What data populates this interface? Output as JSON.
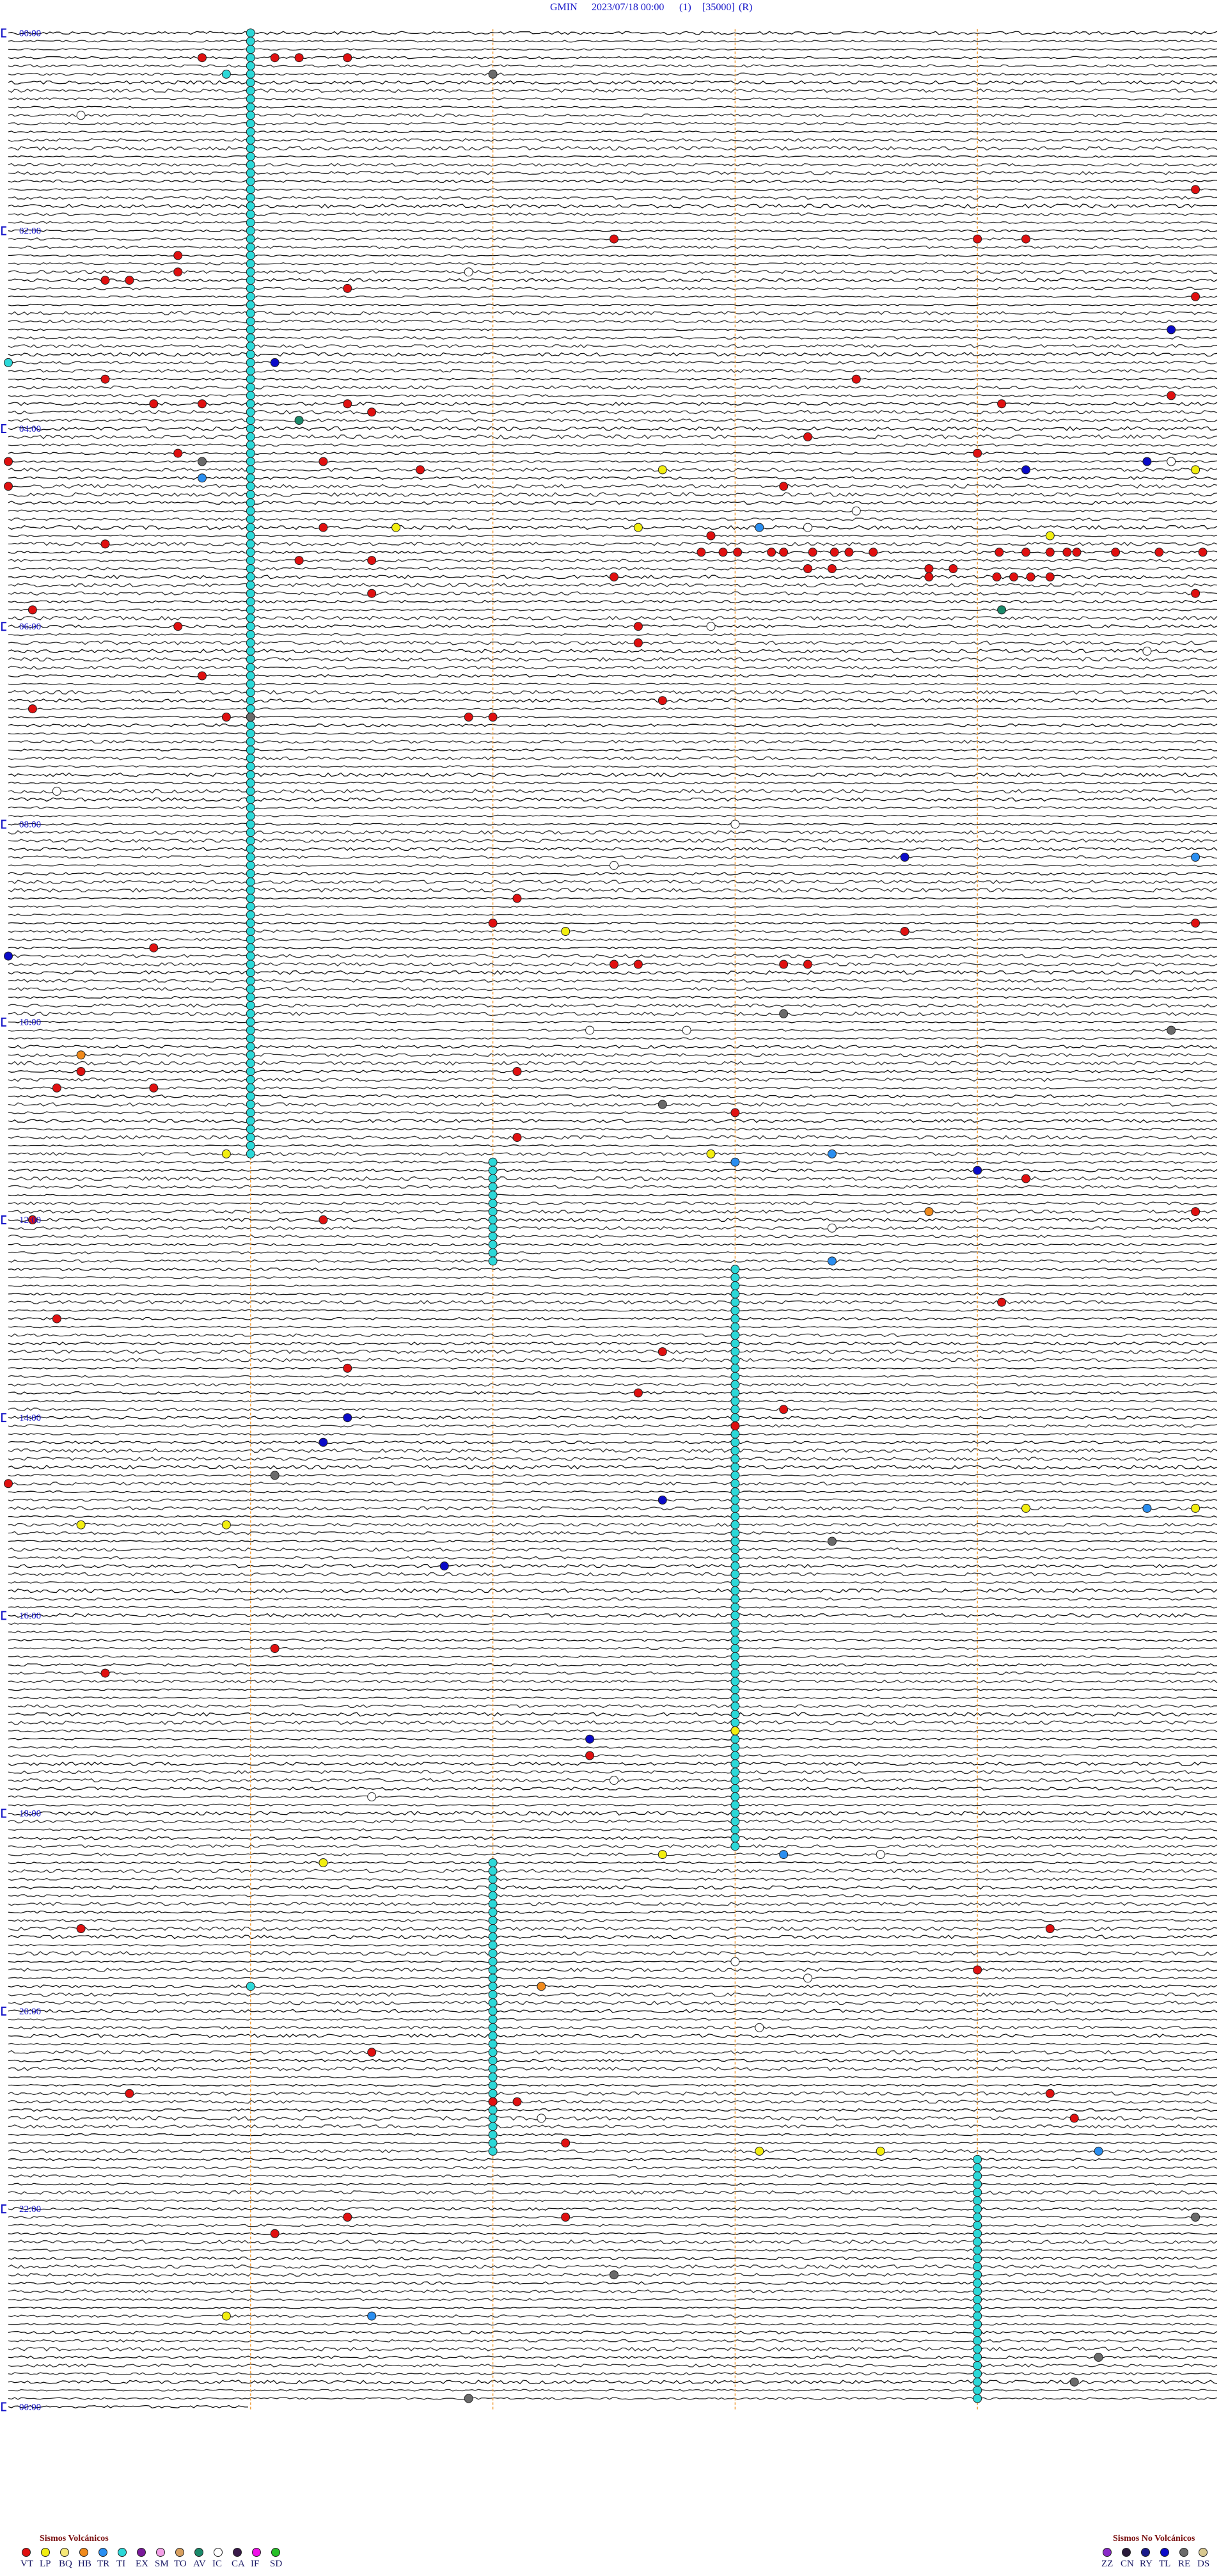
{
  "header": {
    "station": "GMIN",
    "datetime": "2023/07/18 00:00",
    "channel": "(1)",
    "scale": "[35000]",
    "mode": "(R)"
  },
  "hour_labels": [
    "00:00",
    "02:00",
    "04:00",
    "06:00",
    "08:00",
    "10:00",
    "12:00",
    "14:00",
    "16:00",
    "18:00",
    "20:00",
    "22:00",
    "00:00"
  ],
  "legend": {
    "volcanic": {
      "title": "Sismos Volcánicos",
      "codes": [
        {
          "code": "VT",
          "color": "#e01010"
        },
        {
          "code": "LP",
          "color": "#f2ee10"
        },
        {
          "code": "BQ",
          "color": "#f6e878"
        },
        {
          "code": "HB",
          "color": "#f08a1c"
        },
        {
          "code": "TR",
          "color": "#2a8ef0"
        },
        {
          "code": "TI",
          "color": "#2cd8d8"
        },
        {
          "code": "EX",
          "color": "#7a1a9a"
        },
        {
          "code": "SM",
          "color": "#f4a0e8"
        },
        {
          "code": "TO",
          "color": "#d8a060"
        },
        {
          "code": "AV",
          "color": "#1a8a6a"
        },
        {
          "code": "IC",
          "color": "#ffffff"
        },
        {
          "code": "CA",
          "color": "#3a1a4a"
        },
        {
          "code": "IF",
          "color": "#f010e8"
        },
        {
          "code": "SD",
          "color": "#28c028"
        }
      ]
    },
    "non_volcanic": {
      "title": "Sismos No Volcánicos",
      "codes": [
        {
          "code": "ZZ",
          "color": "#8a2ac8"
        },
        {
          "code": "CN",
          "color": "#2a1a3a"
        },
        {
          "code": "RY",
          "color": "#1a1a8a"
        },
        {
          "code": "TL",
          "color": "#0a0ac8"
        },
        {
          "code": "RE",
          "color": "#6a6a6a"
        },
        {
          "code": "DS",
          "color": "#d8c890"
        }
      ]
    }
  },
  "tremor_spans": [
    {
      "code": "TI",
      "start": 1,
      "end": 681
    },
    {
      "code": "TI",
      "start": 687,
      "end": 747
    },
    {
      "code": "TI",
      "start": 753,
      "end": 1103
    },
    {
      "code": "TI",
      "start": 1112,
      "end": 1287
    },
    {
      "code": "TI",
      "start": 1294,
      "end": 1439
    }
  ],
  "events": [
    {
      "code": "VT",
      "minute": 15.8
    },
    {
      "code": "VT",
      "minute": 16.1
    },
    {
      "code": "VT",
      "minute": 16.2
    },
    {
      "code": "VT",
      "minute": 16.4
    },
    {
      "code": "TI",
      "minute": 25.9
    },
    {
      "code": "RE",
      "minute": 27.0
    },
    {
      "code": "IC",
      "minute": 50.3
    },
    {
      "code": "VT",
      "minute": 99.9
    },
    {
      "code": "VT",
      "minute": 127.5
    },
    {
      "code": "VT",
      "minute": 129.0
    },
    {
      "code": "VT",
      "minute": 129.2
    },
    {
      "code": "VT",
      "minute": 135.7
    },
    {
      "code": "VT",
      "minute": 145.7
    },
    {
      "code": "IC",
      "minute": 146.9
    },
    {
      "code": "VT",
      "minute": 150.4
    },
    {
      "code": "VT",
      "minute": 150.5
    },
    {
      "code": "VT",
      "minute": 156.4
    },
    {
      "code": "VT",
      "minute": 164.9
    },
    {
      "code": "TL",
      "minute": 184.8
    },
    {
      "code": "TL",
      "minute": 201.1
    },
    {
      "code": "TI",
      "minute": 200.0
    },
    {
      "code": "VT",
      "minute": 210.4
    },
    {
      "code": "VT",
      "minute": 213.5
    },
    {
      "code": "VT",
      "minute": 224.8
    },
    {
      "code": "VT",
      "minute": 225.6
    },
    {
      "code": "VT",
      "minute": 225.8
    },
    {
      "code": "VT",
      "minute": 226.4
    },
    {
      "code": "VT",
      "minute": 229.1
    },
    {
      "code": "VT",
      "minute": 231.5
    },
    {
      "code": "AV",
      "minute": 236.2
    },
    {
      "code": "VT",
      "minute": 248.3
    },
    {
      "code": "VT",
      "minute": 255.7
    },
    {
      "code": "VT",
      "minute": 259.0
    },
    {
      "code": "VT",
      "minute": 260.0
    },
    {
      "code": "RE",
      "minute": 260.8
    },
    {
      "code": "VT",
      "minute": 261.3
    },
    {
      "code": "TL",
      "minute": 264.7
    },
    {
      "code": "IC",
      "minute": 264.8
    },
    {
      "code": "VT",
      "minute": 266.7
    },
    {
      "code": "LP",
      "minute": 267.7
    },
    {
      "code": "TL",
      "minute": 269.2
    },
    {
      "code": "LP",
      "minute": 269.9
    },
    {
      "code": "TR",
      "minute": 270.8
    },
    {
      "code": "VT",
      "minute": 275.0
    },
    {
      "code": "VT",
      "minute": 278.2
    },
    {
      "code": "IC",
      "minute": 293.5
    },
    {
      "code": "VT",
      "minute": 301.3
    },
    {
      "code": "LP",
      "minute": 301.6
    },
    {
      "code": "LP",
      "minute": 302.6
    },
    {
      "code": "TR",
      "minute": 303.1
    },
    {
      "code": "IC",
      "minute": 303.3
    },
    {
      "code": "VT",
      "minute": 307.9
    },
    {
      "code": "LP",
      "minute": 309.3
    },
    {
      "code": "VT",
      "minute": 310.4
    },
    {
      "code": "VT",
      "minute": 317.86
    },
    {
      "code": "VT",
      "minute": 317.95
    },
    {
      "code": "VT",
      "minute": 318.01
    },
    {
      "code": "VT",
      "minute": 318.15
    },
    {
      "code": "VT",
      "minute": 318.2
    },
    {
      "code": "VT",
      "minute": 318.32
    },
    {
      "code": "VT",
      "minute": 318.41
    },
    {
      "code": "VT",
      "minute": 318.47
    },
    {
      "code": "VT",
      "minute": 318.57
    },
    {
      "code": "VT",
      "minute": 319.09
    },
    {
      "code": "VT",
      "minute": 319.2
    },
    {
      "code": "VT",
      "minute": 319.3
    },
    {
      "code": "VT",
      "minute": 319.37
    },
    {
      "code": "VT",
      "minute": 319.41
    },
    {
      "code": "VT",
      "minute": 319.57
    },
    {
      "code": "VT",
      "minute": 319.75
    },
    {
      "code": "VT",
      "minute": 319.93
    },
    {
      "code": "VT",
      "minute": 321.2
    },
    {
      "code": "VT",
      "minute": 321.5
    },
    {
      "code": "VT",
      "minute": 328.3
    },
    {
      "code": "VT",
      "minute": 328.4
    },
    {
      "code": "VT",
      "minute": 328.8
    },
    {
      "code": "VT",
      "minute": 328.9
    },
    {
      "code": "VT",
      "minute": 332.5
    },
    {
      "code": "VT",
      "minute": 333.8
    },
    {
      "code": "VT",
      "minute": 334.08
    },
    {
      "code": "VT",
      "minute": 334.15
    },
    {
      "code": "VT",
      "minute": 334.22
    },
    {
      "code": "VT",
      "minute": 334.3
    },
    {
      "code": "VT",
      "minute": 341.5
    },
    {
      "code": "VT",
      "minute": 344.9
    },
    {
      "code": "VT",
      "minute": 350.1
    },
    {
      "code": "AV",
      "minute": 354.1
    },
    {
      "code": "VT",
      "minute": 360.7
    },
    {
      "code": "VT",
      "minute": 362.6
    },
    {
      "code": "IC",
      "minute": 362.9
    },
    {
      "code": "VT",
      "minute": 372.6
    },
    {
      "code": "IC",
      "minute": 379.7
    },
    {
      "code": "VT",
      "minute": 390.8
    },
    {
      "code": "VT",
      "minute": 407.7
    },
    {
      "code": "VT",
      "minute": 410.1
    },
    {
      "code": "VT",
      "minute": 415.9
    },
    {
      "code": "RE",
      "minute": 416.0
    },
    {
      "code": "VT",
      "minute": 416.9
    },
    {
      "code": "VT",
      "minute": 417.0
    },
    {
      "code": "IC",
      "minute": 460.2
    },
    {
      "code": "IC",
      "minute": 483.0
    },
    {
      "code": "TL",
      "minute": 503.7
    },
    {
      "code": "TR",
      "minute": 504.9
    },
    {
      "code": "IC",
      "minute": 507.5
    },
    {
      "code": "VT",
      "minute": 527.1
    },
    {
      "code": "VT",
      "minute": 542.0
    },
    {
      "code": "VT",
      "minute": 544.9
    },
    {
      "code": "LP",
      "minute": 547.3
    },
    {
      "code": "VT",
      "minute": 548.7
    },
    {
      "code": "VT",
      "minute": 555.6
    },
    {
      "code": "TL",
      "minute": 560.0
    },
    {
      "code": "VT",
      "minute": 567.5
    },
    {
      "code": "VT",
      "minute": 567.6
    },
    {
      "code": "VT",
      "minute": 568.2
    },
    {
      "code": "VT",
      "minute": 568.3
    },
    {
      "code": "RE",
      "minute": 598.2
    },
    {
      "code": "IC",
      "minute": 607.4
    },
    {
      "code": "IC",
      "minute": 607.8
    },
    {
      "code": "RE",
      "minute": 609.8
    },
    {
      "code": "HB",
      "minute": 620.3
    },
    {
      "code": "VT",
      "minute": 630.3
    },
    {
      "code": "VT",
      "minute": 632.1
    },
    {
      "code": "VT",
      "minute": 640.2
    },
    {
      "code": "VT",
      "minute": 640.6
    },
    {
      "code": "RE",
      "minute": 652.7
    },
    {
      "code": "VT",
      "minute": 658.0
    },
    {
      "code": "VT",
      "minute": 672.1
    },
    {
      "code": "LP",
      "minute": 680.9
    },
    {
      "code": "LP",
      "minute": 682.9
    },
    {
      "code": "TR",
      "minute": 683.4
    },
    {
      "code": "TR",
      "minute": 688.0
    },
    {
      "code": "TL",
      "minute": 694.0
    },
    {
      "code": "VT",
      "minute": 699.2
    },
    {
      "code": "HB",
      "minute": 718.8
    },
    {
      "code": "VT",
      "minute": 719.9
    },
    {
      "code": "VT",
      "minute": 720.1
    },
    {
      "code": "VT",
      "minute": 721.3
    },
    {
      "code": "IC",
      "minute": 728.4
    },
    {
      "code": "TR",
      "minute": 748.4
    },
    {
      "code": "VT",
      "minute": 774.1
    },
    {
      "code": "VT",
      "minute": 780.2
    },
    {
      "code": "VT",
      "minute": 802.7
    },
    {
      "code": "VT",
      "minute": 811.4
    },
    {
      "code": "VT",
      "minute": 827.6
    },
    {
      "code": "VT",
      "minute": 838.2
    },
    {
      "code": "TL",
      "minute": 841.4
    },
    {
      "code": "VT",
      "minute": 848.0
    },
    {
      "code": "TL",
      "minute": 856.3
    },
    {
      "code": "RE",
      "minute": 876.1
    },
    {
      "code": "VT",
      "minute": 880.0
    },
    {
      "code": "TL",
      "minute": 892.7
    },
    {
      "code": "LP",
      "minute": 899.2
    },
    {
      "code": "TR",
      "minute": 899.7
    },
    {
      "code": "LP",
      "minute": 899.9
    },
    {
      "code": "LP",
      "minute": 905.3
    },
    {
      "code": "LP",
      "minute": 905.9
    },
    {
      "code": "RE",
      "minute": 918.4
    },
    {
      "code": "TL",
      "minute": 931.8
    },
    {
      "code": "VT",
      "minute": 981.1
    },
    {
      "code": "VT",
      "minute": 995.4
    },
    {
      "code": "LP",
      "minute": 1033.0
    },
    {
      "code": "TL",
      "minute": 1037.4
    },
    {
      "code": "VT",
      "minute": 1047.4
    },
    {
      "code": "IC",
      "minute": 1062.5
    },
    {
      "code": "IC",
      "minute": 1071.5
    },
    {
      "code": "LP",
      "minute": 1107.7
    },
    {
      "code": "TR",
      "minute": 1108.2
    },
    {
      "code": "IC",
      "minute": 1108.6
    },
    {
      "code": "LP",
      "minute": 1111.3
    },
    {
      "code": "VT",
      "minute": 1150.3
    },
    {
      "code": "VT",
      "minute": 1154.3
    },
    {
      "code": "IC",
      "minute": 1173.0
    },
    {
      "code": "VT",
      "minute": 1179.0
    },
    {
      "code": "IC",
      "minute": 1183.3
    },
    {
      "code": "TI",
      "minute": 1186.0
    },
    {
      "code": "HB",
      "minute": 1187.2
    },
    {
      "code": "IC",
      "minute": 1213.1
    },
    {
      "code": "VT",
      "minute": 1226.5
    },
    {
      "code": "VT",
      "minute": 1250.5
    },
    {
      "code": "VT",
      "minute": 1254.3
    },
    {
      "code": "VT",
      "minute": 1257.0
    },
    {
      "code": "VT",
      "minute": 1257.1
    },
    {
      "code": "IC",
      "minute": 1267.2
    },
    {
      "code": "VT",
      "minute": 1269.4
    },
    {
      "code": "VT",
      "minute": 1282.3
    },
    {
      "code": "LP",
      "minute": 1288.1
    },
    {
      "code": "LP",
      "minute": 1288.6
    },
    {
      "code": "TR",
      "minute": 1289.5
    },
    {
      "code": "VT",
      "minute": 1326.4
    },
    {
      "code": "VT",
      "minute": 1327.3
    },
    {
      "code": "RE",
      "minute": 1329.9
    },
    {
      "code": "VT",
      "minute": 1336.1
    },
    {
      "code": "RE",
      "minute": 1362.5
    },
    {
      "code": "LP",
      "minute": 1385.9
    },
    {
      "code": "TR",
      "minute": 1386.5
    },
    {
      "code": "RE",
      "minute": 1414.5
    },
    {
      "code": "RE",
      "minute": 1429.4
    },
    {
      "code": "RE",
      "minute": 1436.9
    }
  ]
}
